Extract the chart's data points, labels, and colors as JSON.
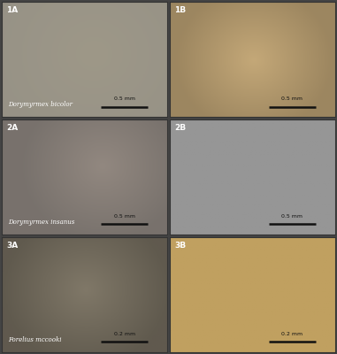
{
  "panel_labels": [
    "1A",
    "1B",
    "2A",
    "2B",
    "3A",
    "3B"
  ],
  "species_labels": [
    "Dorymyrmex bicolor",
    "Dorymyrmex insanus",
    "Forelius mccooki"
  ],
  "scale_bars": [
    "0.5 mm",
    "0.5 mm",
    "0.5 mm",
    "0.5 mm",
    "0.2 mm",
    "0.2 mm"
  ],
  "panel_avg_colors": [
    "#a09080",
    "#c0a878",
    "#9a9088",
    "#9a9898",
    "#8a8070",
    "#c0a870"
  ],
  "border_color": "#555555",
  "label_color_dark": "#111111",
  "label_color_white": "#ffffff",
  "species_label_style": "italic",
  "figure_bg": "#444444",
  "nrows": 3,
  "ncols": 2,
  "figsize": [
    3.81,
    4.0
  ],
  "dpi": 100,
  "panel_bgs": [
    [
      [
        0.58,
        0.6,
        0.62
      ],
      [
        0.72,
        0.7,
        0.65
      ]
    ],
    [
      [
        0.78,
        0.7,
        0.58
      ],
      [
        0.72,
        0.65,
        0.52
      ]
    ],
    [
      [
        0.62,
        0.6,
        0.58
      ],
      [
        0.55,
        0.54,
        0.53
      ]
    ],
    [
      [
        0.65,
        0.64,
        0.64
      ],
      [
        0.6,
        0.6,
        0.6
      ]
    ],
    [
      [
        0.52,
        0.5,
        0.46
      ],
      [
        0.6,
        0.58,
        0.5
      ]
    ],
    [
      [
        0.78,
        0.7,
        0.48
      ],
      [
        0.72,
        0.65,
        0.42
      ]
    ]
  ]
}
